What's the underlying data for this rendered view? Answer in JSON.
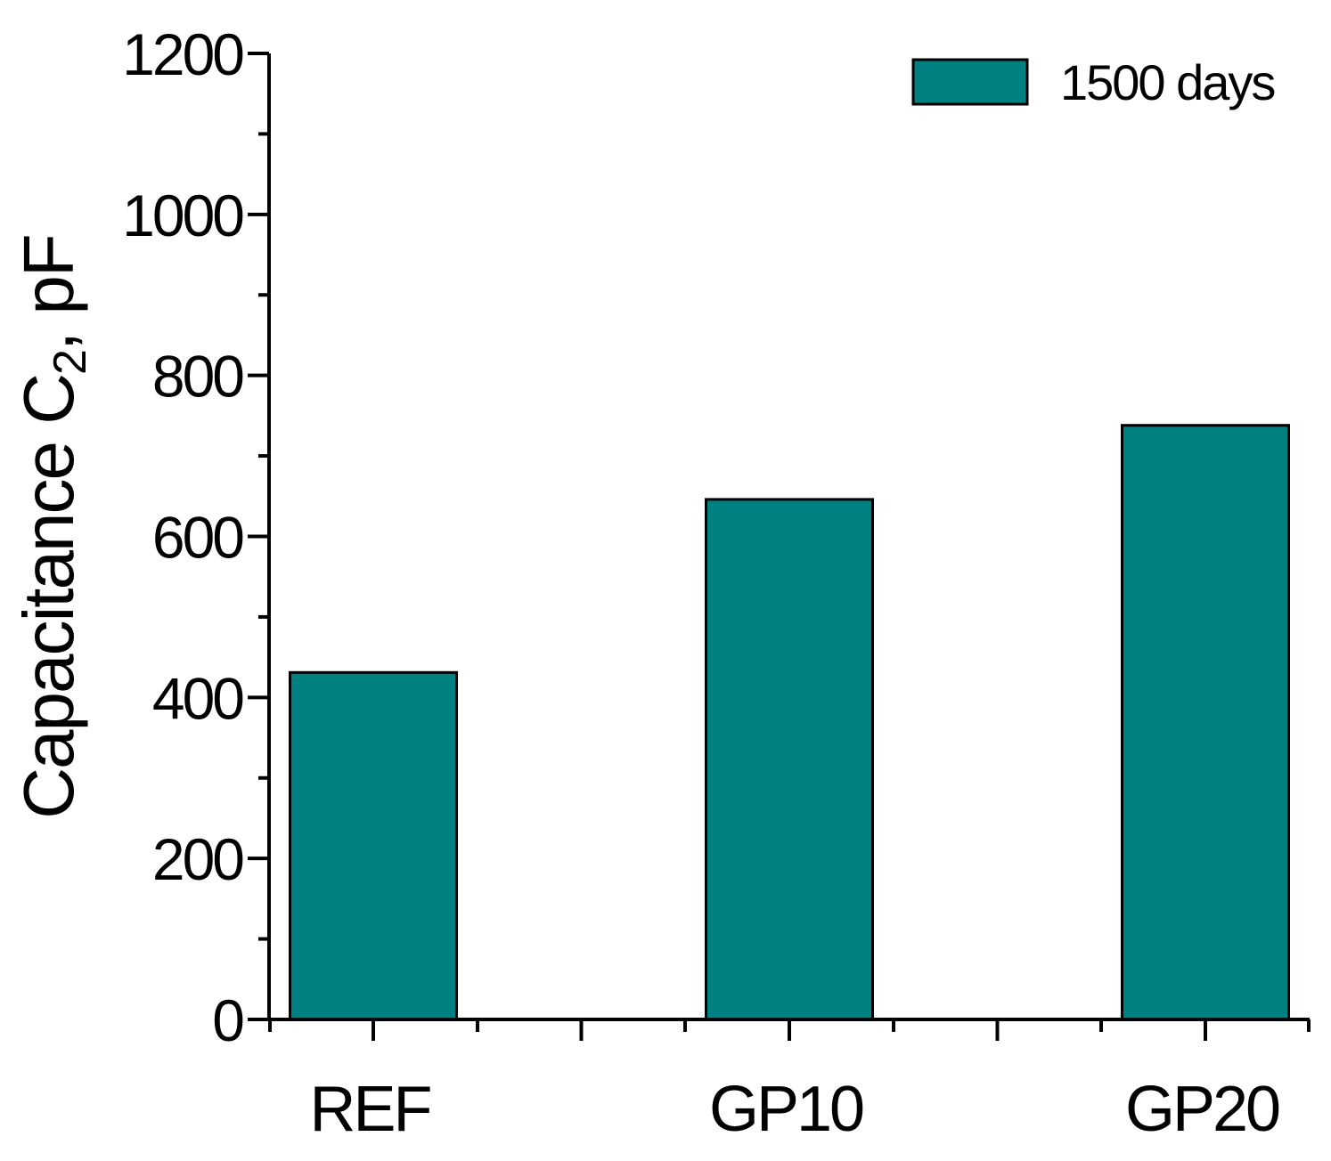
{
  "chart_data": {
    "type": "bar",
    "categories": [
      "REF",
      "GP10",
      "GP20"
    ],
    "series": [
      {
        "name": "1500 days",
        "values": [
          431,
          646,
          738
        ],
        "color": "#008080"
      }
    ],
    "ylabel": {
      "prefix": "Capacitance C",
      "subscript": "2",
      "suffix": ", pF"
    },
    "xlabel": "",
    "ylim": [
      0,
      1200
    ],
    "yticks": [
      0,
      200,
      400,
      600,
      800,
      1000,
      1200
    ],
    "yticks_minor": [
      100,
      300,
      500,
      700,
      900,
      1100
    ],
    "grid": false,
    "legend_position": "top-right",
    "bar_outline_color": "#000000",
    "axis_color": "#000000"
  }
}
